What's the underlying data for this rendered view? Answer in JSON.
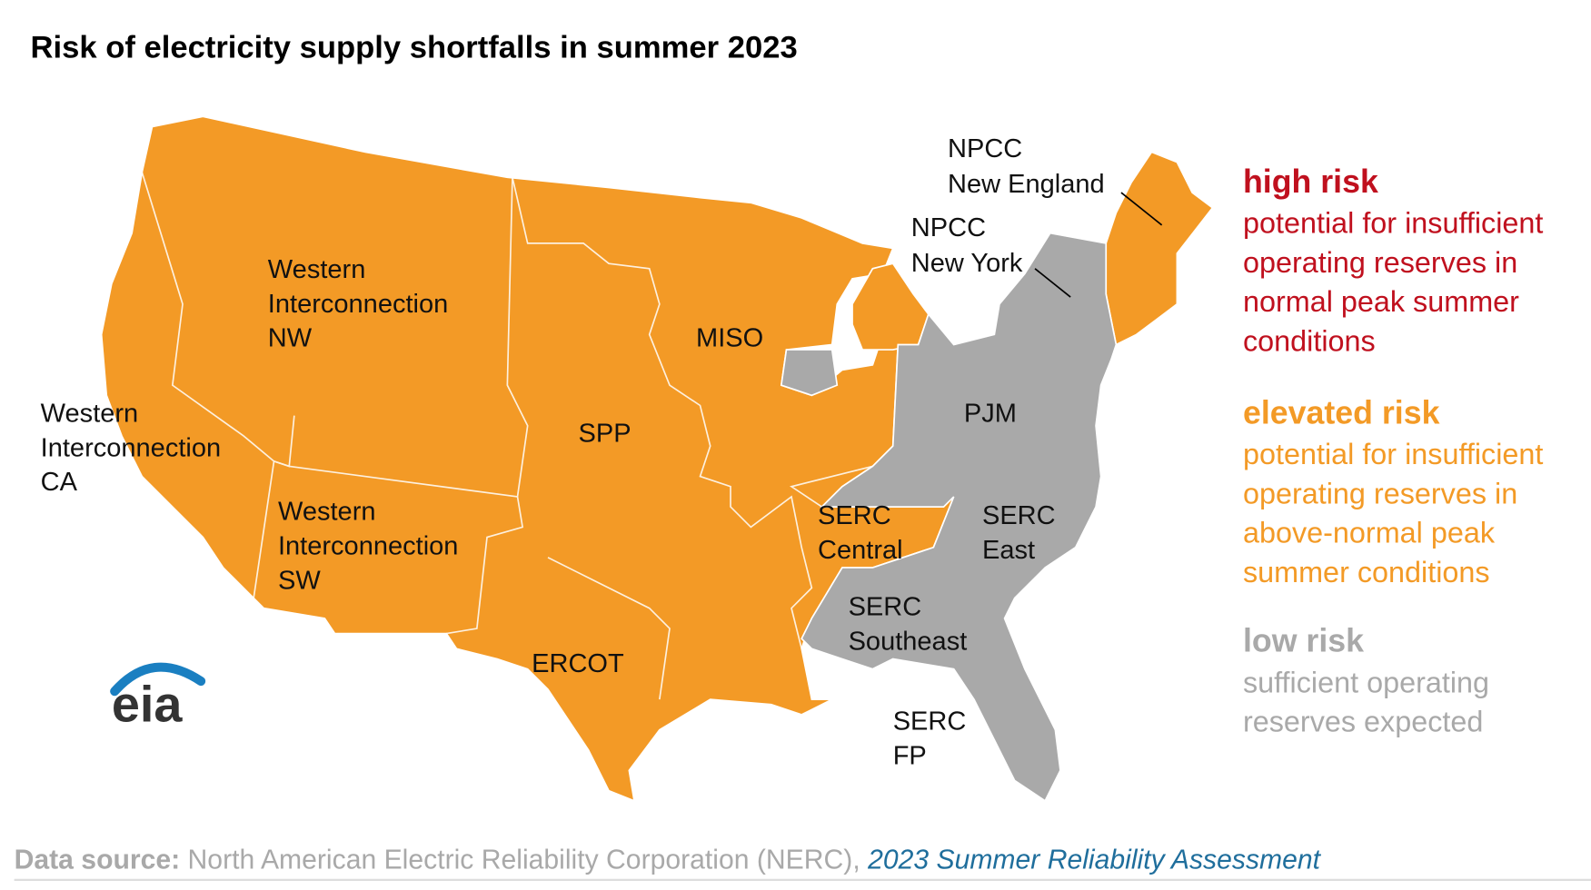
{
  "header": {
    "title": "Risk of electricity supply shortfalls in summer 2023"
  },
  "regions": [
    {
      "lines": [
        "Western",
        "Interconnection",
        "NW"
      ],
      "risk": 1
    },
    {
      "lines": [
        "Western",
        "Interconnection",
        "CA"
      ],
      "risk": 1
    },
    {
      "lines": [
        "Western",
        "Interconnection",
        "SW"
      ],
      "risk": 1
    },
    {
      "lines": [
        "SPP"
      ],
      "risk": 1
    },
    {
      "lines": [
        "MISO"
      ],
      "risk": 1
    },
    {
      "lines": [
        "ERCOT"
      ],
      "risk": 1
    },
    {
      "lines": [
        "SERC",
        "Central"
      ],
      "risk": 1
    },
    {
      "lines": [
        "SERC",
        "East"
      ],
      "risk": 2
    },
    {
      "lines": [
        "SERC",
        "Southeast"
      ],
      "risk": 2
    },
    {
      "lines": [
        "SERC",
        "FP"
      ],
      "risk": 2
    },
    {
      "lines": [
        "PJM"
      ],
      "risk": 2
    },
    {
      "lines": [
        "NPCC",
        "New York"
      ],
      "risk": 2
    },
    {
      "lines": [
        "NPCC",
        "New England"
      ],
      "risk": 1
    }
  ],
  "legend": [
    {
      "heading": "high risk",
      "lines": [
        "potential for insufficient",
        "operating reserves in",
        "normal peak summer",
        "conditions"
      ],
      "color": "#c0101e"
    },
    {
      "heading": "elevated risk",
      "lines": [
        "potential for insufficient",
        "operating reserves in",
        "above-normal peak",
        "summer conditions"
      ],
      "color": "#f39a26"
    },
    {
      "heading": "low risk",
      "lines": [
        "sufficient operating",
        "reserves expected"
      ],
      "color": "#a9a9a9"
    }
  ],
  "logo": "eia",
  "source": {
    "label": "Data source:",
    "text": "North American Electric Reliability Corporation (NERC),",
    "link": "2023 Summer Reliability Assessment"
  }
}
